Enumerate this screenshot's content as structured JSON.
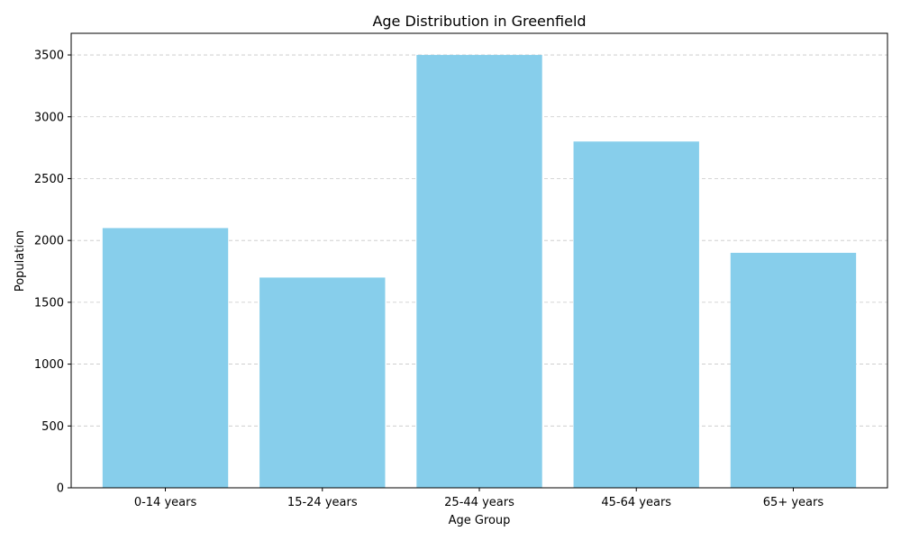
{
  "colors": {
    "bar": "#87ceeb",
    "grid": "#b0b0b0",
    "axis": "#000000"
  },
  "chart_data": {
    "type": "bar",
    "title": "Age Distribution in Greenfield",
    "xlabel": "Age Group",
    "ylabel": "Population",
    "categories": [
      "0-14 years",
      "15-24 years",
      "25-44 years",
      "45-64 years",
      "65+ years"
    ],
    "values": [
      2100,
      1700,
      3500,
      2800,
      1900
    ],
    "ylim": [
      0,
      3675
    ],
    "yticks": [
      0,
      500,
      1000,
      1500,
      2000,
      2500,
      3000,
      3500
    ],
    "grid": "y-dashed",
    "legend": "none"
  }
}
